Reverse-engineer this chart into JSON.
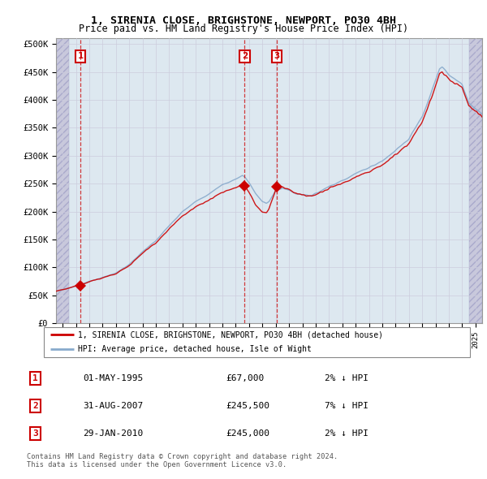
{
  "title1": "1, SIRENIA CLOSE, BRIGHSTONE, NEWPORT, PO30 4BH",
  "title2": "Price paid vs. HM Land Registry's House Price Index (HPI)",
  "ylabel_ticks": [
    "£0",
    "£50K",
    "£100K",
    "£150K",
    "£200K",
    "£250K",
    "£300K",
    "£350K",
    "£400K",
    "£450K",
    "£500K"
  ],
  "ytick_values": [
    0,
    50000,
    100000,
    150000,
    200000,
    250000,
    300000,
    350000,
    400000,
    450000,
    500000
  ],
  "xmin": 1993.5,
  "xmax": 2025.5,
  "sale_dates": [
    1995.33,
    2007.66,
    2010.08
  ],
  "sale_prices": [
    67000,
    245500,
    245000
  ],
  "sale_labels": [
    "1",
    "2",
    "3"
  ],
  "legend_line1": "1, SIRENIA CLOSE, BRIGHSTONE, NEWPORT, PO30 4BH (detached house)",
  "legend_line2": "HPI: Average price, detached house, Isle of Wight",
  "table_rows": [
    {
      "label": "1",
      "date": "01-MAY-1995",
      "price": "£67,000",
      "hpi": "2% ↓ HPI"
    },
    {
      "label": "2",
      "date": "31-AUG-2007",
      "price": "£245,500",
      "hpi": "7% ↓ HPI"
    },
    {
      "label": "3",
      "date": "29-JAN-2010",
      "price": "£245,000",
      "hpi": "2% ↓ HPI"
    }
  ],
  "footer": "Contains HM Land Registry data © Crown copyright and database right 2024.\nThis data is licensed under the Open Government Licence v3.0.",
  "red_color": "#cc0000",
  "blue_color": "#88aacc",
  "hatch_color": "#e0e0ee",
  "grid_color": "#ccccdd",
  "bg_color": "#dde8f0"
}
